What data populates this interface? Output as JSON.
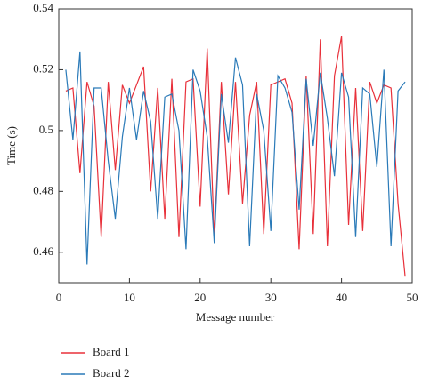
{
  "chart_data": {
    "type": "line",
    "x_label": "Message number",
    "y_label": "Time (s)",
    "x": [
      1,
      2,
      3,
      4,
      5,
      6,
      7,
      8,
      9,
      10,
      11,
      12,
      13,
      14,
      15,
      16,
      17,
      18,
      19,
      20,
      21,
      22,
      23,
      24,
      25,
      26,
      27,
      28,
      29,
      30,
      31,
      32,
      33,
      34,
      35,
      36,
      37,
      38,
      39,
      40,
      41,
      42,
      43,
      44,
      45,
      46,
      47,
      48,
      49
    ],
    "series": [
      {
        "name": "Board 1",
        "color": "#e8303a",
        "values": [
          0.513,
          0.514,
          0.486,
          0.516,
          0.508,
          0.465,
          0.516,
          0.487,
          0.515,
          0.509,
          0.515,
          0.521,
          0.48,
          0.514,
          0.471,
          0.517,
          0.465,
          0.516,
          0.517,
          0.475,
          0.527,
          0.465,
          0.516,
          0.479,
          0.516,
          0.476,
          0.505,
          0.516,
          0.466,
          0.515,
          0.516,
          0.517,
          0.509,
          0.461,
          0.518,
          0.466,
          0.53,
          0.462,
          0.518,
          0.531,
          0.469,
          0.514,
          0.467,
          0.516,
          0.509,
          0.515,
          0.514,
          0.476,
          0.452
        ]
      },
      {
        "name": "Board 2",
        "color": "#2a7ab8",
        "values": [
          0.52,
          0.497,
          0.526,
          0.456,
          0.514,
          0.514,
          0.49,
          0.471,
          0.498,
          0.514,
          0.497,
          0.513,
          0.503,
          0.471,
          0.511,
          0.512,
          0.5,
          0.461,
          0.52,
          0.513,
          0.498,
          0.463,
          0.512,
          0.496,
          0.524,
          0.515,
          0.462,
          0.512,
          0.5,
          0.467,
          0.518,
          0.514,
          0.506,
          0.474,
          0.517,
          0.495,
          0.519,
          0.504,
          0.485,
          0.519,
          0.511,
          0.465,
          0.514,
          0.512,
          0.488,
          0.52,
          0.462,
          0.513,
          0.516
        ]
      }
    ],
    "xlim": [
      0,
      50
    ],
    "xticks": [
      0,
      10,
      20,
      30,
      40,
      50
    ],
    "ylim": [
      0.45,
      0.54
    ],
    "yticks": [
      0.46,
      0.48,
      0.5,
      0.52,
      0.54
    ]
  }
}
